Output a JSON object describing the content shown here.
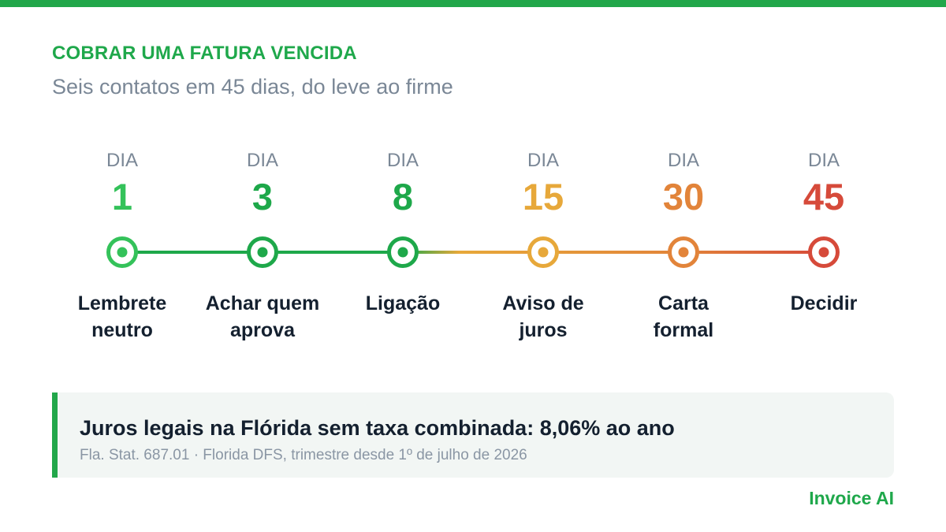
{
  "header": {
    "eyebrow": "COBRAR UMA FATURA VENCIDA",
    "subtitle": "Seis contatos em 45 dias, do leve ao firme"
  },
  "timeline": {
    "steps": [
      {
        "dia": "DIA",
        "day": "1",
        "label_line1": "Lembrete",
        "label_line2": "neutro",
        "color": "#34c25a"
      },
      {
        "dia": "DIA",
        "day": "3",
        "label_line1": "Achar quem",
        "label_line2": "aprova",
        "color": "#1ea84a"
      },
      {
        "dia": "DIA",
        "day": "8",
        "label_line1": "Ligação",
        "label_line2": "",
        "color": "#1ea84a"
      },
      {
        "dia": "DIA",
        "day": "15",
        "label_line1": "Aviso de",
        "label_line2": "juros",
        "color": "#e7a83a"
      },
      {
        "dia": "DIA",
        "day": "30",
        "label_line1": "Carta",
        "label_line2": "formal",
        "color": "#e2843a"
      },
      {
        "dia": "DIA",
        "day": "45",
        "label_line1": "Decidir",
        "label_line2": "",
        "color": "#d64a3a"
      }
    ]
  },
  "callout": {
    "title": "Juros legais na Flórida sem taxa combinada: 8,06% ao ano",
    "source": "Fla. Stat. 687.01 · Florida DFS, trimestre desde 1º de julho de 2026",
    "accent": "#22a74a"
  },
  "brand": "Invoice AI"
}
